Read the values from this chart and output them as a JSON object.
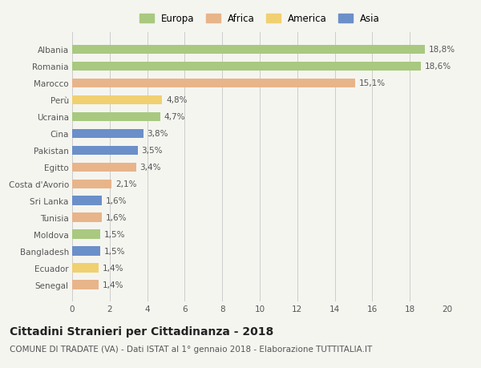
{
  "countries": [
    "Albania",
    "Romania",
    "Marocco",
    "Perù",
    "Ucraina",
    "Cina",
    "Pakistan",
    "Egitto",
    "Costa d'Avorio",
    "Sri Lanka",
    "Tunisia",
    "Moldova",
    "Bangladesh",
    "Ecuador",
    "Senegal"
  ],
  "values": [
    18.8,
    18.6,
    15.1,
    4.8,
    4.7,
    3.8,
    3.5,
    3.4,
    2.1,
    1.6,
    1.6,
    1.5,
    1.5,
    1.4,
    1.4
  ],
  "continents": [
    "Europa",
    "Europa",
    "Africa",
    "America",
    "Europa",
    "Asia",
    "Asia",
    "Africa",
    "Africa",
    "Asia",
    "Africa",
    "Europa",
    "Asia",
    "America",
    "Africa"
  ],
  "colors": {
    "Europa": "#a8c97f",
    "Africa": "#e8b48a",
    "America": "#f0d070",
    "Asia": "#6b8fc9"
  },
  "legend_order": [
    "Europa",
    "Africa",
    "America",
    "Asia"
  ],
  "xlim": [
    0,
    20
  ],
  "xticks": [
    0,
    2,
    4,
    6,
    8,
    10,
    12,
    14,
    16,
    18,
    20
  ],
  "title": "Cittadini Stranieri per Cittadinanza - 2018",
  "subtitle": "COMUNE DI TRADATE (VA) - Dati ISTAT al 1° gennaio 2018 - Elaborazione TUTTITALIA.IT",
  "title_fontsize": 10,
  "subtitle_fontsize": 7.5,
  "bar_height": 0.55,
  "background_color": "#f5f5f0",
  "grid_color": "#cccccc",
  "label_fontsize": 7.5,
  "tick_fontsize": 7.5
}
